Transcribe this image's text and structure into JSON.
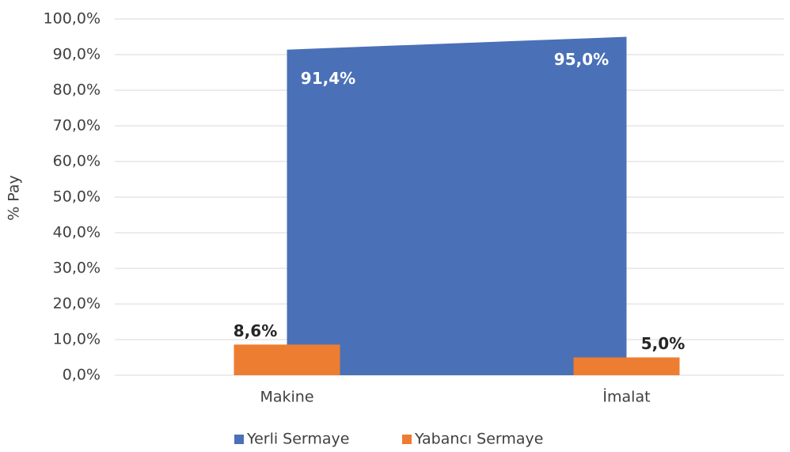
{
  "chart_data": {
    "type": "combo",
    "y_label": "% Pay",
    "categories": [
      "Makine",
      "İmalat"
    ],
    "series": [
      {
        "name": "Yerli Sermaye",
        "type": "area",
        "color": "#4a70b7",
        "values": [
          91.4,
          95.0
        ],
        "value_labels": [
          "91,4%",
          "95,0%"
        ]
      },
      {
        "name": "Yabancı Sermaye",
        "type": "bar",
        "color": "#ed7d31",
        "values": [
          8.6,
          5.0
        ],
        "value_labels": [
          "8,6%",
          "5,0%"
        ]
      }
    ],
    "ylim": [
      0,
      100
    ],
    "yticks": [
      {
        "value": 0,
        "label": "0,0%"
      },
      {
        "value": 10,
        "label": "10,0%"
      },
      {
        "value": 20,
        "label": "20,0%"
      },
      {
        "value": 30,
        "label": "30,0%"
      },
      {
        "value": 40,
        "label": "40,0%"
      },
      {
        "value": 50,
        "label": "50,0%"
      },
      {
        "value": 60,
        "label": "60,0%"
      },
      {
        "value": 70,
        "label": "70,0%"
      },
      {
        "value": 80,
        "label": "80,0%"
      },
      {
        "value": 90,
        "label": "90,0%"
      },
      {
        "value": 100,
        "label": "100,0%"
      }
    ],
    "grid": true,
    "legend": "bottom"
  }
}
